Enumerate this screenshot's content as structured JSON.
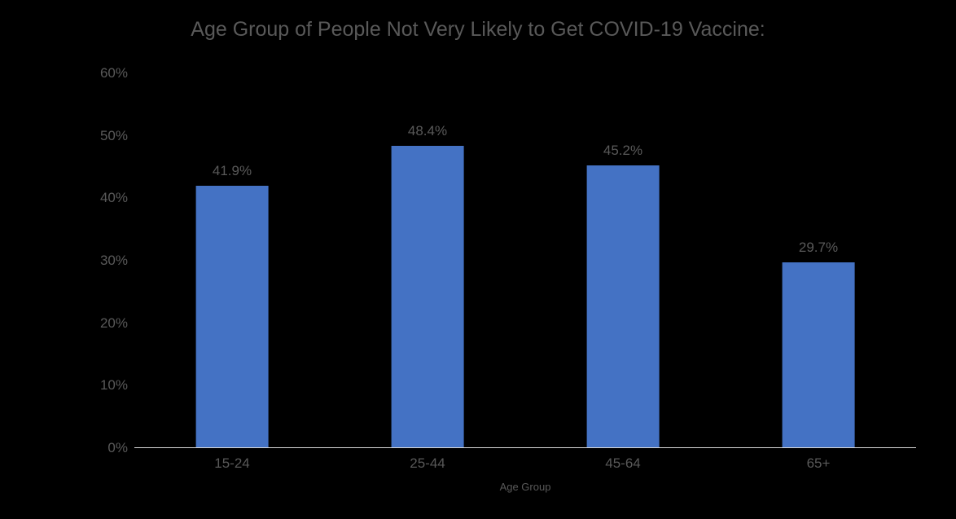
{
  "chart": {
    "type": "bar",
    "title": "Age Group of People Not Very Likely to Get COVID-19 Vaccine:",
    "title_color": "#595959",
    "title_fontsize": 25,
    "background_color": "#000000",
    "x_axis": {
      "title": "Age Group",
      "title_color": "#595959",
      "title_fontsize": 13,
      "categories": [
        "15-24",
        "25-44",
        "45-64",
        "65+"
      ],
      "tick_color": "#595959",
      "tick_fontsize": 17
    },
    "y_axis": {
      "min": 0,
      "max": 60,
      "tick_step": 10,
      "ticks": [
        "0%",
        "10%",
        "20%",
        "30%",
        "40%",
        "50%",
        "60%"
      ],
      "tick_color": "#595959",
      "tick_fontsize": 17
    },
    "series": {
      "values": [
        41.9,
        48.4,
        45.2,
        29.7
      ],
      "value_labels": [
        "41.9%",
        "48.4%",
        "45.2%",
        "29.7%"
      ],
      "bar_color": "#4472c4",
      "bar_width_ratio": 0.37,
      "data_label_color": "#595959",
      "data_label_fontsize": 17
    },
    "axis_line_color": "#d9d9d9"
  }
}
